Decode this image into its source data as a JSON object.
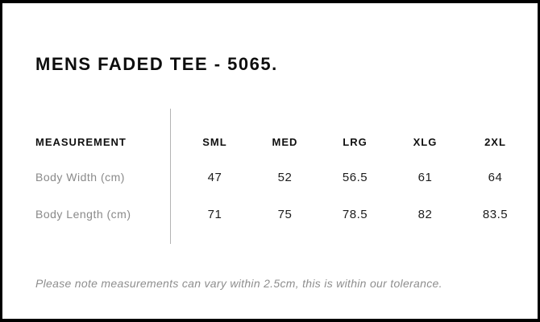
{
  "header": {
    "title": "MENS FADED TEE - 5065."
  },
  "size_table": {
    "measurement_label": "MEASUREMENT",
    "sizes": [
      "SML",
      "MED",
      "LRG",
      "XLG",
      "2XL"
    ],
    "rows": [
      {
        "label": "Body Width (cm)",
        "values": [
          "47",
          "52",
          "56.5",
          "61",
          "64"
        ]
      },
      {
        "label": "Body Length (cm)",
        "values": [
          "71",
          "75",
          "78.5",
          "82",
          "83.5"
        ]
      }
    ]
  },
  "footnote": {
    "text": "Please note measurements can vary within 2.5cm, this is within our tolerance."
  },
  "colors": {
    "frame_border": "#000000",
    "title_text": "#0d0d0d",
    "header_text": "#101010",
    "value_text": "#1c1c1c",
    "muted_text": "#8a8a8a",
    "divider": "#b4b4b4",
    "background": "#ffffff"
  }
}
